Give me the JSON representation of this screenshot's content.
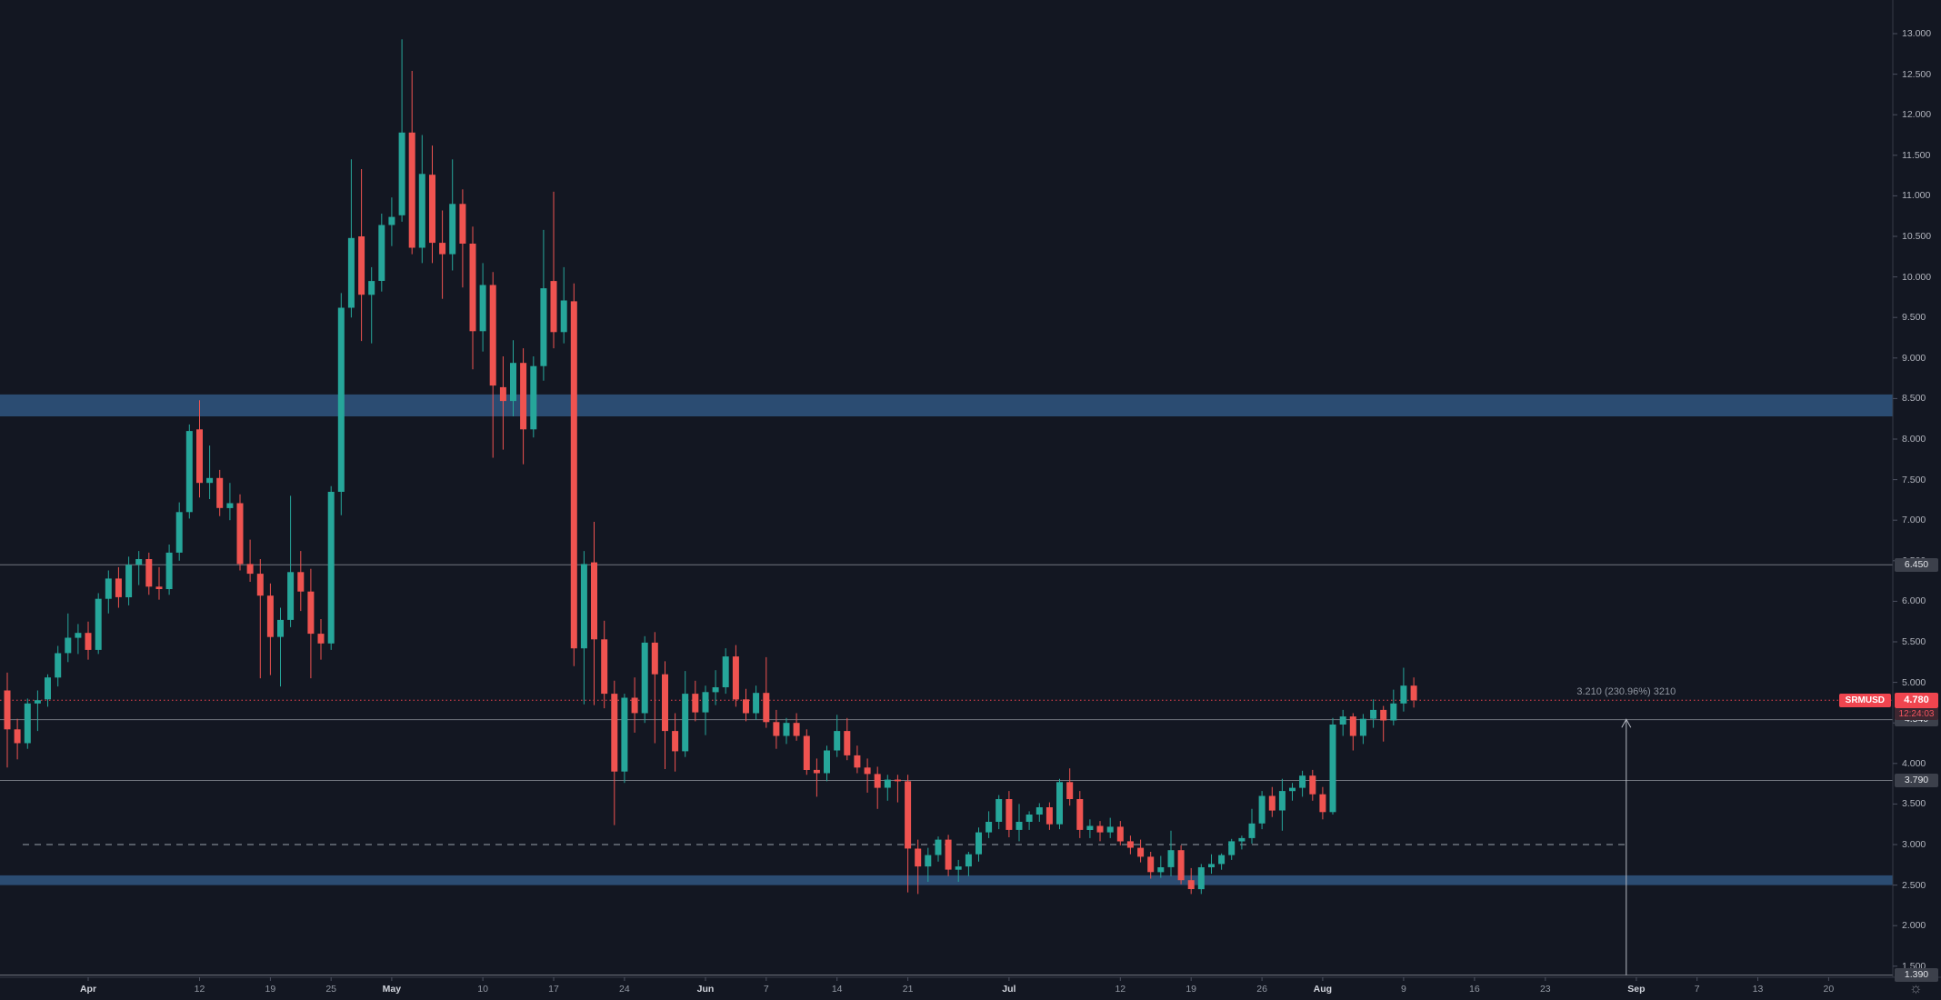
{
  "ui": {
    "symbol_tag": "SRMUSD",
    "current_price_label": "4.780",
    "countdown": "12:24:03",
    "measurement_label": "3.210 (230.96%) 3210",
    "settings_icon": "sun",
    "background_color": "#131722",
    "accent_red": "#f0454f",
    "zone_blue": "#2b4c72"
  },
  "chart_data": {
    "type": "candlestick",
    "symbol": "SRMUSD",
    "interval_note": "daily candles, late March through August, last close 4.78",
    "up_color": "#26a69a",
    "down_color": "#ef5350",
    "grid": "off",
    "y_axis_visible_range": [
      1.36,
      13.41
    ],
    "price_axis_ticks": [
      "13.000",
      "12.500",
      "12.000",
      "11.500",
      "11.000",
      "10.500",
      "10.000",
      "9.500",
      "9.000",
      "8.500",
      "8.000",
      "7.500",
      "7.000",
      "6.500",
      "6.000",
      "5.500",
      "5.000",
      "4.500",
      "4.000",
      "3.500",
      "3.000",
      "2.500",
      "2.000",
      "1.500"
    ],
    "time_axis_labels": [
      {
        "label": "Apr",
        "day": 8,
        "month": true
      },
      {
        "label": "12",
        "day": 19
      },
      {
        "label": "19",
        "day": 26
      },
      {
        "label": "25",
        "day": 32
      },
      {
        "label": "May",
        "day": 38,
        "month": true
      },
      {
        "label": "10",
        "day": 47
      },
      {
        "label": "17",
        "day": 54
      },
      {
        "label": "24",
        "day": 61
      },
      {
        "label": "Jun",
        "day": 69,
        "month": true
      },
      {
        "label": "7",
        "day": 75
      },
      {
        "label": "14",
        "day": 82
      },
      {
        "label": "21",
        "day": 89
      },
      {
        "label": "Jul",
        "day": 99,
        "month": true
      },
      {
        "label": "12",
        "day": 110
      },
      {
        "label": "19",
        "day": 117
      },
      {
        "label": "26",
        "day": 124
      },
      {
        "label": "Aug",
        "day": 130,
        "month": true
      },
      {
        "label": "9",
        "day": 138
      },
      {
        "label": "16",
        "day": 145
      },
      {
        "label": "23",
        "day": 152
      },
      {
        "label": "Sep",
        "day": 161,
        "month": true
      },
      {
        "label": "7",
        "day": 167
      },
      {
        "label": "13",
        "day": 173
      },
      {
        "label": "20",
        "day": 180
      }
    ],
    "zones": [
      {
        "name": "resistance-zone",
        "from": 8.28,
        "to": 8.55
      },
      {
        "name": "support-zone",
        "from": 2.5,
        "to": 2.62
      }
    ],
    "level_lines": [
      {
        "price": 6.45,
        "label": "6.450",
        "style": "solid"
      },
      {
        "price": 4.54,
        "label": "4.540",
        "style": "solid"
      },
      {
        "price": 3.79,
        "label": "3.790",
        "style": "solid"
      },
      {
        "price": 1.39,
        "label": "1.390",
        "style": "solid"
      },
      {
        "price": 3.0,
        "label": "",
        "style": "dashed"
      }
    ],
    "current_price": {
      "price": 4.78,
      "label": "4.780",
      "countdown": "12:24:03"
    },
    "measurement": {
      "label": "3.210 (230.96%) 3210",
      "from_price": 1.39,
      "to_price": 4.6,
      "day": 160
    },
    "candles_ohlc": [
      [
        4.9,
        5.12,
        3.95,
        4.42
      ],
      [
        4.42,
        4.55,
        4.05,
        4.25
      ],
      [
        4.25,
        4.8,
        4.18,
        4.74
      ],
      [
        4.74,
        4.9,
        4.4,
        4.78
      ],
      [
        4.79,
        5.1,
        4.7,
        5.06
      ],
      [
        5.06,
        5.45,
        4.95,
        5.36
      ],
      [
        5.36,
        5.85,
        5.25,
        5.55
      ],
      [
        5.55,
        5.72,
        5.35,
        5.61
      ],
      [
        5.61,
        5.75,
        5.28,
        5.4
      ],
      [
        5.4,
        6.1,
        5.35,
        6.03
      ],
      [
        6.03,
        6.38,
        5.85,
        6.28
      ],
      [
        6.28,
        6.42,
        5.92,
        6.05
      ],
      [
        6.05,
        6.55,
        5.95,
        6.45
      ],
      [
        6.45,
        6.62,
        6.2,
        6.52
      ],
      [
        6.52,
        6.6,
        6.08,
        6.18
      ],
      [
        6.18,
        6.42,
        6.02,
        6.15
      ],
      [
        6.15,
        6.7,
        6.08,
        6.6
      ],
      [
        6.6,
        7.22,
        6.5,
        7.1
      ],
      [
        7.1,
        8.18,
        7.02,
        8.1
      ],
      [
        8.12,
        8.48,
        7.28,
        7.46
      ],
      [
        7.46,
        7.92,
        7.26,
        7.52
      ],
      [
        7.52,
        7.62,
        7.05,
        7.15
      ],
      [
        7.15,
        7.46,
        7.0,
        7.21
      ],
      [
        7.21,
        7.32,
        6.38,
        6.46
      ],
      [
        6.46,
        6.76,
        6.24,
        6.34
      ],
      [
        6.34,
        6.52,
        5.05,
        6.07
      ],
      [
        6.07,
        6.22,
        5.09,
        5.56
      ],
      [
        5.56,
        5.92,
        4.95,
        5.77
      ],
      [
        5.77,
        7.3,
        5.68,
        6.36
      ],
      [
        6.36,
        6.62,
        5.88,
        6.12
      ],
      [
        6.12,
        6.4,
        5.05,
        5.6
      ],
      [
        5.6,
        5.78,
        5.28,
        5.48
      ],
      [
        5.48,
        7.42,
        5.4,
        7.35
      ],
      [
        7.35,
        9.8,
        7.06,
        9.62
      ],
      [
        9.62,
        11.45,
        9.5,
        10.48
      ],
      [
        10.5,
        11.33,
        9.21,
        9.78
      ],
      [
        9.78,
        10.12,
        9.18,
        9.95
      ],
      [
        9.95,
        10.78,
        9.82,
        10.64
      ],
      [
        10.64,
        10.98,
        10.38,
        10.74
      ],
      [
        10.76,
        12.93,
        10.68,
        11.78
      ],
      [
        11.78,
        12.54,
        10.28,
        10.36
      ],
      [
        10.36,
        11.75,
        10.17,
        11.27
      ],
      [
        11.26,
        11.62,
        10.17,
        10.42
      ],
      [
        10.42,
        10.82,
        9.73,
        10.28
      ],
      [
        10.28,
        11.45,
        10.08,
        10.9
      ],
      [
        10.9,
        11.08,
        9.87,
        10.41
      ],
      [
        10.41,
        10.62,
        8.86,
        9.33
      ],
      [
        9.33,
        10.17,
        9.08,
        9.9
      ],
      [
        9.9,
        10.06,
        7.77,
        8.66
      ],
      [
        8.64,
        9.02,
        7.87,
        8.47
      ],
      [
        8.47,
        9.22,
        8.28,
        8.94
      ],
      [
        8.94,
        9.12,
        7.69,
        8.12
      ],
      [
        8.12,
        9.02,
        8.02,
        8.9
      ],
      [
        8.9,
        10.58,
        8.72,
        9.86
      ],
      [
        9.95,
        11.05,
        9.12,
        9.32
      ],
      [
        9.32,
        10.12,
        9.18,
        9.71
      ],
      [
        9.7,
        9.92,
        5.2,
        5.42
      ],
      [
        5.42,
        6.62,
        4.73,
        6.46
      ],
      [
        6.48,
        6.98,
        4.72,
        5.53
      ],
      [
        5.53,
        5.76,
        4.68,
        4.86
      ],
      [
        4.86,
        5.02,
        3.24,
        3.9
      ],
      [
        3.9,
        4.86,
        3.76,
        4.81
      ],
      [
        4.81,
        5.06,
        4.38,
        4.62
      ],
      [
        4.62,
        5.57,
        4.5,
        5.49
      ],
      [
        5.49,
        5.62,
        4.25,
        5.1
      ],
      [
        5.1,
        5.26,
        3.93,
        4.4
      ],
      [
        4.4,
        4.62,
        3.9,
        4.15
      ],
      [
        4.15,
        5.14,
        4.08,
        4.86
      ],
      [
        4.86,
        5.02,
        4.52,
        4.63
      ],
      [
        4.63,
        4.96,
        4.35,
        4.88
      ],
      [
        4.88,
        5.15,
        4.72,
        4.94
      ],
      [
        4.94,
        5.42,
        4.86,
        5.32
      ],
      [
        5.32,
        5.46,
        4.7,
        4.79
      ],
      [
        4.79,
        4.92,
        4.52,
        4.62
      ],
      [
        4.62,
        4.96,
        4.54,
        4.87
      ],
      [
        4.87,
        5.31,
        4.44,
        4.51
      ],
      [
        4.51,
        4.66,
        4.18,
        4.34
      ],
      [
        4.34,
        4.56,
        4.24,
        4.5
      ],
      [
        4.5,
        4.62,
        4.28,
        4.34
      ],
      [
        4.34,
        4.42,
        3.86,
        3.92
      ],
      [
        3.92,
        4.06,
        3.59,
        3.88
      ],
      [
        3.88,
        4.22,
        3.78,
        4.16
      ],
      [
        4.16,
        4.6,
        4.08,
        4.4
      ],
      [
        4.4,
        4.56,
        4.04,
        4.1
      ],
      [
        4.1,
        4.22,
        3.88,
        3.95
      ],
      [
        3.95,
        4.06,
        3.64,
        3.87
      ],
      [
        3.87,
        3.96,
        3.44,
        3.7
      ],
      [
        3.7,
        3.86,
        3.54,
        3.8
      ],
      [
        3.8,
        3.86,
        3.52,
        3.78
      ],
      [
        3.78,
        3.86,
        2.41,
        2.95
      ],
      [
        2.95,
        3.06,
        2.39,
        2.73
      ],
      [
        2.73,
        2.96,
        2.54,
        2.87
      ],
      [
        2.87,
        3.1,
        2.79,
        3.06
      ],
      [
        3.06,
        3.12,
        2.61,
        2.69
      ],
      [
        2.69,
        2.81,
        2.54,
        2.73
      ],
      [
        2.73,
        2.91,
        2.61,
        2.88
      ],
      [
        2.88,
        3.21,
        2.79,
        3.15
      ],
      [
        3.15,
        3.41,
        3.08,
        3.28
      ],
      [
        3.28,
        3.61,
        3.19,
        3.56
      ],
      [
        3.56,
        3.66,
        3.09,
        3.18
      ],
      [
        3.18,
        3.5,
        3.04,
        3.28
      ],
      [
        3.28,
        3.41,
        3.18,
        3.37
      ],
      [
        3.37,
        3.51,
        3.28,
        3.46
      ],
      [
        3.46,
        3.52,
        3.18,
        3.25
      ],
      [
        3.25,
        3.81,
        3.19,
        3.77
      ],
      [
        3.77,
        3.94,
        3.48,
        3.56
      ],
      [
        3.56,
        3.66,
        3.08,
        3.18
      ],
      [
        3.18,
        3.31,
        3.08,
        3.23
      ],
      [
        3.23,
        3.29,
        3.04,
        3.15
      ],
      [
        3.15,
        3.33,
        3.08,
        3.22
      ],
      [
        3.22,
        3.29,
        2.99,
        3.04
      ],
      [
        3.04,
        3.11,
        2.88,
        2.96
      ],
      [
        2.96,
        3.06,
        2.78,
        2.85
      ],
      [
        2.85,
        2.91,
        2.58,
        2.66
      ],
      [
        2.66,
        2.86,
        2.59,
        2.72
      ],
      [
        2.72,
        3.17,
        2.61,
        2.93
      ],
      [
        2.93,
        2.99,
        2.51,
        2.56
      ],
      [
        2.56,
        2.71,
        2.39,
        2.45
      ],
      [
        2.45,
        2.76,
        2.39,
        2.72
      ],
      [
        2.72,
        2.88,
        2.64,
        2.76
      ],
      [
        2.76,
        2.89,
        2.69,
        2.87
      ],
      [
        2.87,
        3.07,
        2.81,
        3.04
      ],
      [
        3.04,
        3.11,
        2.94,
        3.08
      ],
      [
        3.08,
        3.44,
        3.01,
        3.26
      ],
      [
        3.26,
        3.66,
        3.19,
        3.6
      ],
      [
        3.6,
        3.71,
        3.34,
        3.42
      ],
      [
        3.42,
        3.81,
        3.17,
        3.66
      ],
      [
        3.66,
        3.76,
        3.54,
        3.7
      ],
      [
        3.7,
        3.91,
        3.59,
        3.85
      ],
      [
        3.85,
        3.92,
        3.54,
        3.62
      ],
      [
        3.62,
        3.71,
        3.31,
        3.4
      ],
      [
        3.4,
        4.56,
        3.37,
        4.48
      ],
      [
        4.48,
        4.66,
        4.34,
        4.58
      ],
      [
        4.58,
        4.62,
        4.16,
        4.34
      ],
      [
        4.34,
        4.61,
        4.24,
        4.55
      ],
      [
        4.55,
        4.79,
        4.44,
        4.66
      ],
      [
        4.66,
        4.71,
        4.27,
        4.53
      ],
      [
        4.53,
        4.91,
        4.47,
        4.74
      ],
      [
        4.74,
        5.18,
        4.64,
        4.96
      ],
      [
        4.96,
        5.06,
        4.69,
        4.78
      ]
    ]
  }
}
